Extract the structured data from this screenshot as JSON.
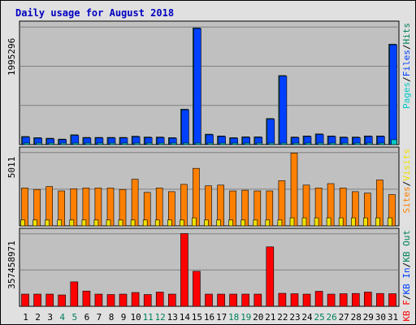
{
  "chart_data": {
    "type": "bar",
    "title": "Daily usage for August 2018",
    "categories": [
      "1",
      "2",
      "3",
      "4",
      "5",
      "6",
      "7",
      "8",
      "9",
      "10",
      "11",
      "12",
      "13",
      "14",
      "15",
      "16",
      "17",
      "18",
      "19",
      "20",
      "21",
      "22",
      "23",
      "24",
      "25",
      "26",
      "27",
      "28",
      "29",
      "30",
      "31"
    ],
    "weekend_days": [
      4,
      5,
      11,
      12,
      18,
      19,
      25,
      26
    ],
    "panels": [
      {
        "id": "hits",
        "axis_max_label": "1995296",
        "ylim": [
          0,
          2100000
        ],
        "series": [
          {
            "name": "Pages",
            "color": "#00c8c8",
            "values": [
              6000,
              5000,
              5000,
              4000,
              6000,
              5000,
              5000,
              5000,
              5000,
              6000,
              5000,
              5000,
              5000,
              8000,
              8000,
              6000,
              5000,
              5000,
              5000,
              5000,
              8000,
              8000,
              5000,
              5000,
              6000,
              5000,
              5000,
              5000,
              5000,
              5000,
              85000
            ]
          },
          {
            "name": "Files",
            "color": "#0040ff",
            "values": [
              130000,
              110000,
              100000,
              85000,
              160000,
              115000,
              115000,
              115000,
              115000,
              135000,
              120000,
              120000,
              110000,
              600000,
              2000000,
              170000,
              140000,
              110000,
              125000,
              125000,
              440000,
              1180000,
              120000,
              140000,
              175000,
              140000,
              120000,
              120000,
              140000,
              140000,
              1720000
            ]
          },
          {
            "name": "Hits",
            "color": "#00805c",
            "values": [
              140000,
              120000,
              110000,
              95000,
              170000,
              125000,
              125000,
              125000,
              125000,
              145000,
              130000,
              130000,
              120000,
              610000,
              2010000,
              180000,
              150000,
              120000,
              135000,
              135000,
              450000,
              1190000,
              130000,
              150000,
              185000,
              150000,
              130000,
              130000,
              150000,
              150000,
              1730000
            ]
          }
        ]
      },
      {
        "id": "visits",
        "axis_max_label": "5011",
        "ylim": [
          0,
          5300
        ],
        "series": [
          {
            "name": "Visits",
            "color": "#f0e000",
            "values": [
              400,
              400,
              400,
              400,
              400,
              400,
              400,
              400,
              400,
              400,
              400,
              400,
              400,
              400,
              550,
              400,
              400,
              400,
              400,
              400,
              400,
              400,
              550,
              550,
              550,
              550,
              550,
              550,
              550,
              550,
              550
            ]
          },
          {
            "name": "Sites",
            "color": "#ff8000",
            "values": [
              2600,
              2500,
              2700,
              2400,
              2550,
              2600,
              2600,
              2600,
              2500,
              3200,
              2300,
              2600,
              2350,
              2850,
              3950,
              2750,
              2800,
              2400,
              2450,
              2400,
              2400,
              3100,
              5000,
              2800,
              2600,
              2900,
              2600,
              2350,
              2250,
              3150,
              2150
            ]
          }
        ]
      },
      {
        "id": "kbytes",
        "axis_max_label": "357458971",
        "ylim": [
          0,
          375000000
        ],
        "series": [
          {
            "name": "KB F",
            "color": "#ff0000",
            "values": [
              0,
              0,
              0,
              0,
              0,
              0,
              0,
              0,
              0,
              0,
              0,
              0,
              0,
              0,
              0,
              0,
              0,
              0,
              0,
              0,
              0,
              0,
              0,
              0,
              0,
              0,
              0,
              0,
              0,
              0,
              0
            ]
          },
          {
            "name": "KB In",
            "color": "#0040ff",
            "values": [
              0,
              0,
              0,
              0,
              0,
              0,
              0,
              0,
              0,
              0,
              0,
              0,
              0,
              0,
              0,
              0,
              0,
              0,
              0,
              0,
              0,
              0,
              0,
              0,
              0,
              0,
              0,
              0,
              0,
              0,
              0
            ]
          },
          {
            "name": "KB Out",
            "color": "#00805c",
            "values": [
              0,
              0,
              0,
              0,
              0,
              0,
              0,
              0,
              0,
              0,
              0,
              0,
              0,
              0,
              0,
              0,
              0,
              0,
              0,
              0,
              0,
              0,
              0,
              0,
              0,
              0,
              0,
              0,
              0,
              0,
              0
            ]
          },
          {
            "name": "KB F",
            "color": "#ff0000",
            "values": [
              60000000,
              60000000,
              60000000,
              56000000,
              120000000,
              75000000,
              60000000,
              58000000,
              60000000,
              68000000,
              58000000,
              70000000,
              60000000,
              357000000,
              172000000,
              60000000,
              60000000,
              60000000,
              60000000,
              60000000,
              292000000,
              64000000,
              62000000,
              60000000,
              74000000,
              60000000,
              62000000,
              63000000,
              70000000,
              63000000,
              62000000
            ]
          }
        ]
      }
    ],
    "legends": {
      "hits": [
        {
          "text": "Pages",
          "color": "#00c8c8"
        },
        {
          "text": "/",
          "color": "#000000"
        },
        {
          "text": "Files",
          "color": "#0040ff"
        },
        {
          "text": "/",
          "color": "#000000"
        },
        {
          "text": "Hits",
          "color": "#00805c"
        }
      ],
      "visits": [
        {
          "text": "Sites",
          "color": "#ff8000"
        },
        {
          "text": "/",
          "color": "#000000"
        },
        {
          "text": "Visits",
          "color": "#f0e000"
        }
      ],
      "kbytes": [
        {
          "text": "KB F",
          "color": "#ff0000"
        },
        {
          "text": "/",
          "color": "#000000"
        },
        {
          "text": "KB In",
          "color": "#0040ff"
        },
        {
          "text": "/",
          "color": "#000000"
        },
        {
          "text": "KB Out",
          "color": "#00805c"
        }
      ]
    },
    "grid": true,
    "colors": {
      "background": "#e0e0e0",
      "plot_background": "#c0c0c0",
      "gridline": "#808080",
      "title": "#0000c0",
      "weekday_label": "#000000",
      "weekend_label": "#00805c"
    }
  }
}
